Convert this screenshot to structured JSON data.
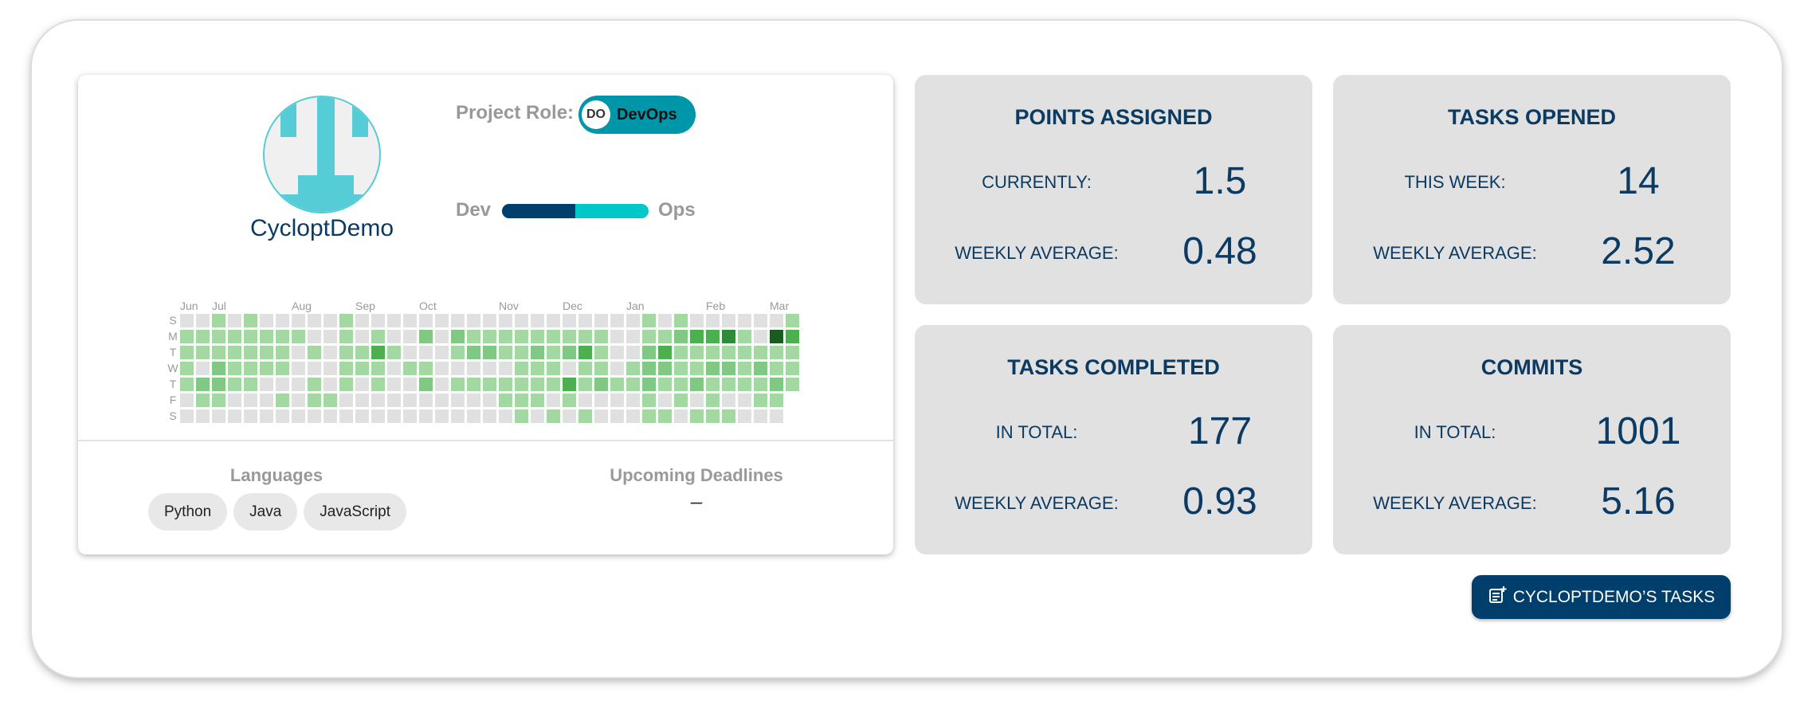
{
  "profile": {
    "username": "CycloptDemo",
    "role_label": "Project Role:",
    "role_initials": "DO",
    "role_name": "DevOps",
    "dev_label": "Dev",
    "ops_label": "Ops",
    "dev_ops_ratio": 0.5,
    "languages_title": "Languages",
    "languages": [
      "Python",
      "Java",
      "JavaScript"
    ],
    "deadlines_title": "Upcoming Deadlines",
    "deadlines_value": "–"
  },
  "chart_data": {
    "type": "heatmap",
    "day_labels": [
      "S",
      "M",
      "T",
      "W",
      "T",
      "F",
      "S"
    ],
    "month_labels": [
      {
        "label": "Jun",
        "week": 0
      },
      {
        "label": "Jul",
        "week": 2
      },
      {
        "label": "Aug",
        "week": 7
      },
      {
        "label": "Sep",
        "week": 11
      },
      {
        "label": "Oct",
        "week": 15
      },
      {
        "label": "Nov",
        "week": 20
      },
      {
        "label": "Dec",
        "week": 24
      },
      {
        "label": "Jan",
        "week": 28
      },
      {
        "label": "Feb",
        "week": 33
      },
      {
        "label": "Mar",
        "week": 37
      }
    ],
    "levels_by_day": [
      [
        0,
        0,
        1,
        0,
        1,
        0,
        0,
        0,
        0,
        0,
        1,
        0,
        0,
        0,
        0,
        0,
        0,
        0,
        0,
        0,
        0,
        0,
        0,
        0,
        0,
        0,
        0,
        0,
        0,
        1,
        0,
        1,
        0,
        0,
        0,
        0,
        0,
        0,
        1
      ],
      [
        1,
        1,
        1,
        1,
        1,
        1,
        1,
        1,
        0,
        0,
        1,
        0,
        1,
        0,
        0,
        2,
        0,
        2,
        1,
        1,
        1,
        1,
        1,
        1,
        1,
        1,
        1,
        0,
        0,
        1,
        1,
        2,
        3,
        3,
        4,
        1,
        0,
        5,
        3
      ],
      [
        1,
        1,
        1,
        1,
        1,
        1,
        1,
        0,
        1,
        0,
        1,
        1,
        3,
        1,
        0,
        0,
        0,
        1,
        2,
        2,
        1,
        1,
        2,
        1,
        2,
        3,
        1,
        0,
        0,
        2,
        3,
        1,
        1,
        1,
        1,
        1,
        1,
        1,
        1
      ],
      [
        1,
        0,
        2,
        1,
        1,
        1,
        1,
        0,
        0,
        0,
        1,
        1,
        1,
        0,
        1,
        1,
        0,
        0,
        0,
        0,
        0,
        1,
        1,
        1,
        0,
        1,
        1,
        0,
        1,
        2,
        2,
        1,
        1,
        2,
        2,
        1,
        2,
        1,
        1
      ],
      [
        1,
        2,
        2,
        1,
        1,
        0,
        0,
        0,
        1,
        0,
        1,
        0,
        1,
        0,
        0,
        2,
        0,
        1,
        1,
        1,
        1,
        1,
        1,
        1,
        3,
        1,
        2,
        1,
        1,
        2,
        1,
        1,
        2,
        1,
        1,
        1,
        1,
        2,
        1
      ],
      [
        0,
        1,
        1,
        0,
        0,
        0,
        1,
        0,
        1,
        1,
        0,
        0,
        0,
        0,
        0,
        0,
        0,
        0,
        0,
        0,
        1,
        1,
        1,
        0,
        1,
        0,
        0,
        0,
        0,
        1,
        0,
        1,
        0,
        1,
        0,
        0,
        1,
        1,
        null
      ],
      [
        0,
        0,
        0,
        0,
        0,
        0,
        0,
        0,
        0,
        0,
        0,
        0,
        0,
        0,
        0,
        0,
        0,
        0,
        0,
        0,
        0,
        1,
        0,
        1,
        0,
        1,
        0,
        0,
        0,
        1,
        1,
        0,
        1,
        1,
        1,
        0,
        0,
        0,
        null
      ]
    ],
    "level_colors": [
      "#e0e0e0",
      "#a3d8a3",
      "#80c883",
      "#4caf50",
      "#2f8a3a",
      "#1a5c1f"
    ]
  },
  "stats": [
    {
      "title": "POINTS ASSIGNED",
      "row1_label": "CURRENTLY:",
      "row1_value": "1.5",
      "row2_label": "WEEKLY AVERAGE:",
      "row2_value": "0.48"
    },
    {
      "title": "TASKS OPENED",
      "row1_label": "THIS WEEK:",
      "row1_value": "14",
      "row2_label": "WEEKLY AVERAGE:",
      "row2_value": "2.52"
    },
    {
      "title": "TASKS COMPLETED",
      "row1_label": "IN TOTAL:",
      "row1_value": "177",
      "row2_label": "WEEKLY AVERAGE:",
      "row2_value": "0.93"
    },
    {
      "title": "COMMITS",
      "row1_label": "IN TOTAL:",
      "row1_value": "1001",
      "row2_label": "WEEKLY AVERAGE:",
      "row2_value": "5.16"
    }
  ],
  "tasks_button": {
    "label": "CYCLOPTDEMO’S TASKS",
    "icon": "add-note-icon"
  }
}
